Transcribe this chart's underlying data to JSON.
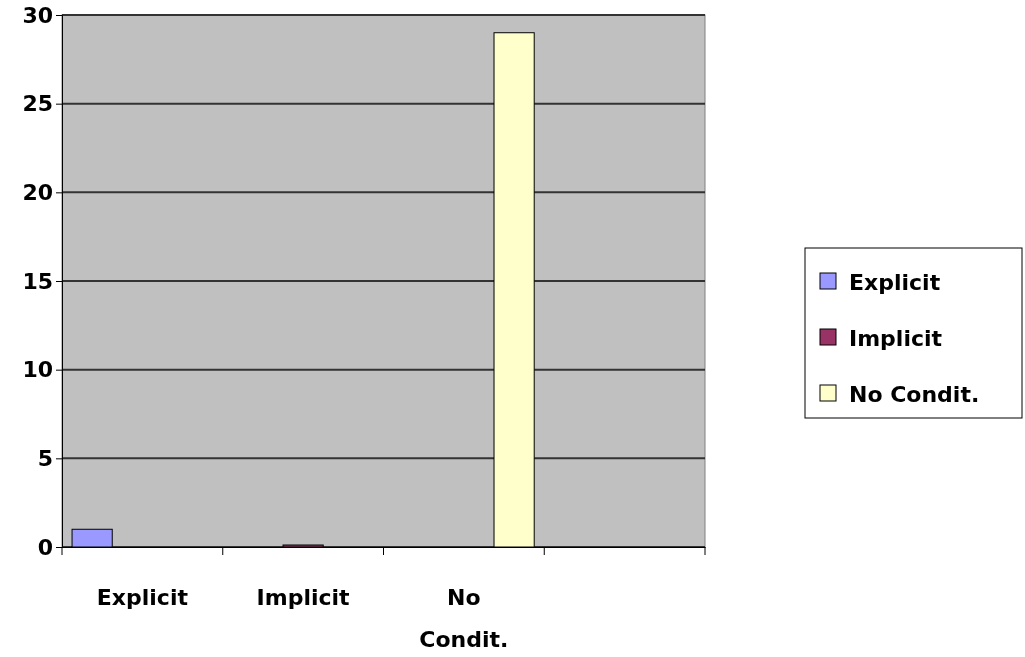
{
  "chart_data": {
    "type": "bar",
    "categories": [
      "Explicit",
      "Implicit",
      "No Condit.",
      null
    ],
    "series": [
      {
        "name": "Explicit",
        "color": "#9999ff",
        "values": [
          1,
          null,
          null,
          null
        ]
      },
      {
        "name": "Implicit",
        "color": "#993366",
        "values": [
          null,
          0,
          null,
          null
        ]
      },
      {
        "name": "No Condit.",
        "color": "#ffffcc",
        "values": [
          null,
          null,
          29,
          null
        ]
      }
    ],
    "ylim": [
      0,
      30
    ],
    "yticks": [
      0,
      5,
      10,
      15,
      20,
      25,
      30
    ],
    "grid": "y",
    "legend": "right"
  }
}
